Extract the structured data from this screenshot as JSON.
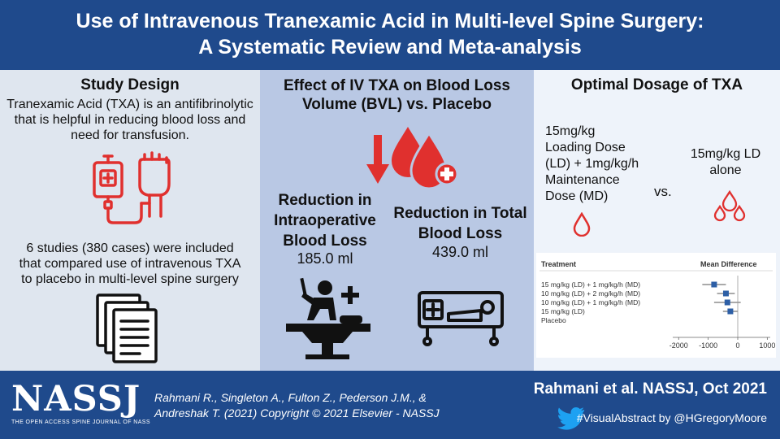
{
  "header": {
    "title_line1": "Use of Intravenous Tranexamic Acid in Multi-level Spine Surgery:",
    "title_line2": "A Systematic Review and Meta-analysis"
  },
  "study_design": {
    "heading": "Study Design",
    "intro_lines": [
      "Tranexamic Acid (TXA) is an antifibrinolytic",
      "that is helpful in reducing blood loss and",
      "need for transfusion."
    ],
    "studies_lines": [
      "6 studies (380 cases) were included",
      "that compared use of intravenous TXA",
      "to placebo in multi-level spine surgery"
    ]
  },
  "effect": {
    "heading_line1": "Effect of IV TXA on Blood Loss",
    "heading_line2": "Volume (BVL) vs. Placebo",
    "intraop_label_lines": [
      "Reduction in",
      "Intraoperative",
      "Blood Loss"
    ],
    "intraop_value": "185.0 ml",
    "total_label_lines": [
      "Reduction in Total",
      "Blood Loss"
    ],
    "total_value": "439.0 ml"
  },
  "dosage": {
    "heading": "Optimal Dosage of TXA",
    "option1_lines": [
      "15mg/kg",
      "Loading Dose",
      "(LD) + 1mg/kg/h",
      "Maintenance",
      "Dose (MD)"
    ],
    "vs": "vs.",
    "option2_lines": [
      "15mg/kg LD",
      "alone"
    ]
  },
  "chart_data": {
    "type": "forest",
    "headers": [
      "Treatment",
      "Mean Difference"
    ],
    "categories": [
      "15 mg/kg (LD) + 1 mg/kg/h (MD)",
      "10 mg/kg (LD) + 2 mg/kg/h (MD)",
      "10 mg/kg (LD) + 1 mg/kg/h (MD)",
      "15 mg/kg (LD)",
      "Placebo"
    ],
    "values": [
      -800,
      -400,
      -350,
      -250,
      null
    ],
    "ci": [
      [
        -1200,
        -400
      ],
      [
        -700,
        -100
      ],
      [
        -800,
        100
      ],
      [
        -500,
        0
      ],
      null
    ],
    "xticks": [
      -2000,
      -1000,
      0,
      1000
    ],
    "xtick_labels": [
      "-2000",
      "-1000",
      "0",
      "1000"
    ],
    "xlim": [
      -2200,
      1100
    ],
    "marker_color": "#2d5fa6"
  },
  "footer": {
    "logo_text": "NASSJ",
    "logo_subtitle": "THE OPEN ACCESS SPINE JOURNAL OF NASS",
    "citation_line1": "Rahmani R., Singleton A., Fulton Z., Pederson J.M., &",
    "citation_line2": "Andreshak T. (2021) Copyright © 2021 Elsevier - NASSJ",
    "title": "Rahmani et al. NASSJ, Oct 2021",
    "handle": "#VisualAbstract by @HGregoryMoore"
  },
  "colors": {
    "header_blue": "#1f4a8c",
    "accent_red": "#e0302e",
    "left_bg": "#dfe6ef",
    "mid_bg": "#b9c8e4",
    "right_bg": "#eef3fa"
  },
  "icons": {
    "iv_bag": "iv-bag-fist-icon",
    "documents": "documents-icon",
    "blood_drops": "blood-drops-plus-icon",
    "down_arrow": "down-arrow-icon",
    "surgery": "surgeon-operating-icon",
    "hospital_bed": "hospital-bed-icon",
    "single_drop": "single-drop-icon",
    "three_drops": "three-drops-icon",
    "twitter": "twitter-bird-icon"
  }
}
